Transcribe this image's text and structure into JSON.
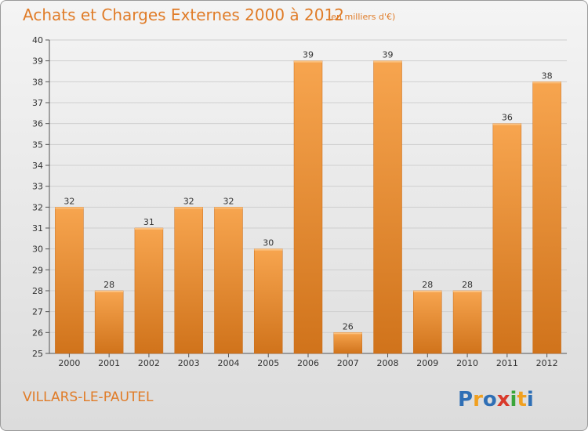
{
  "header": {
    "title": "Achats et Charges Externes 2000 à 2012",
    "unit": "(en milliers d'€)"
  },
  "footer": {
    "commune": "VILLARS-LE-PAUTEL",
    "logo_text": "Proxiti"
  },
  "colors": {
    "bar_light": "#f7a54f",
    "bar_dark": "#d0731b",
    "text": "#e07c28",
    "grid": "#cfcfcf"
  },
  "chart_data": {
    "type": "bar",
    "title": "Achats et Charges Externes 2000 à 2012",
    "subtitle": "(en milliers d'€)",
    "categories": [
      "2000",
      "2001",
      "2002",
      "2003",
      "2004",
      "2005",
      "2006",
      "2007",
      "2008",
      "2009",
      "2010",
      "2011",
      "2012"
    ],
    "values": [
      32,
      28,
      31,
      32,
      32,
      30,
      39,
      26,
      39,
      28,
      28,
      36,
      38
    ],
    "ylim": [
      25,
      40
    ],
    "yticks": [
      25,
      26,
      27,
      28,
      29,
      30,
      31,
      32,
      33,
      34,
      35,
      36,
      37,
      38,
      39,
      40
    ],
    "grid": true,
    "data_labels": true
  }
}
